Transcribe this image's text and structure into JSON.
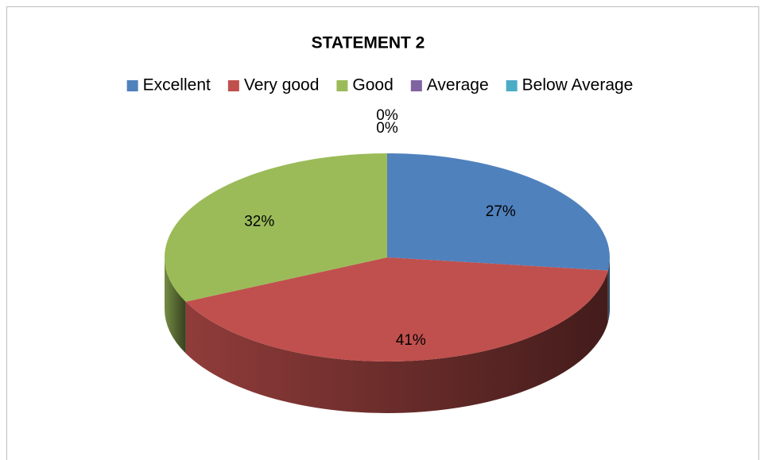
{
  "chart_data": {
    "type": "pie",
    "title": "STATEMENT 2",
    "categories": [
      "Excellent",
      "Very good",
      "Good",
      "Average",
      "Below Average"
    ],
    "values": [
      27,
      41,
      32,
      0,
      0
    ],
    "value_labels": [
      "27%",
      "41%",
      "32%",
      "0%",
      "0%"
    ],
    "colors": [
      "#4f81bd",
      "#c0504d",
      "#9bbb59",
      "#8064a2",
      "#4bacc6"
    ],
    "legend": "top"
  }
}
